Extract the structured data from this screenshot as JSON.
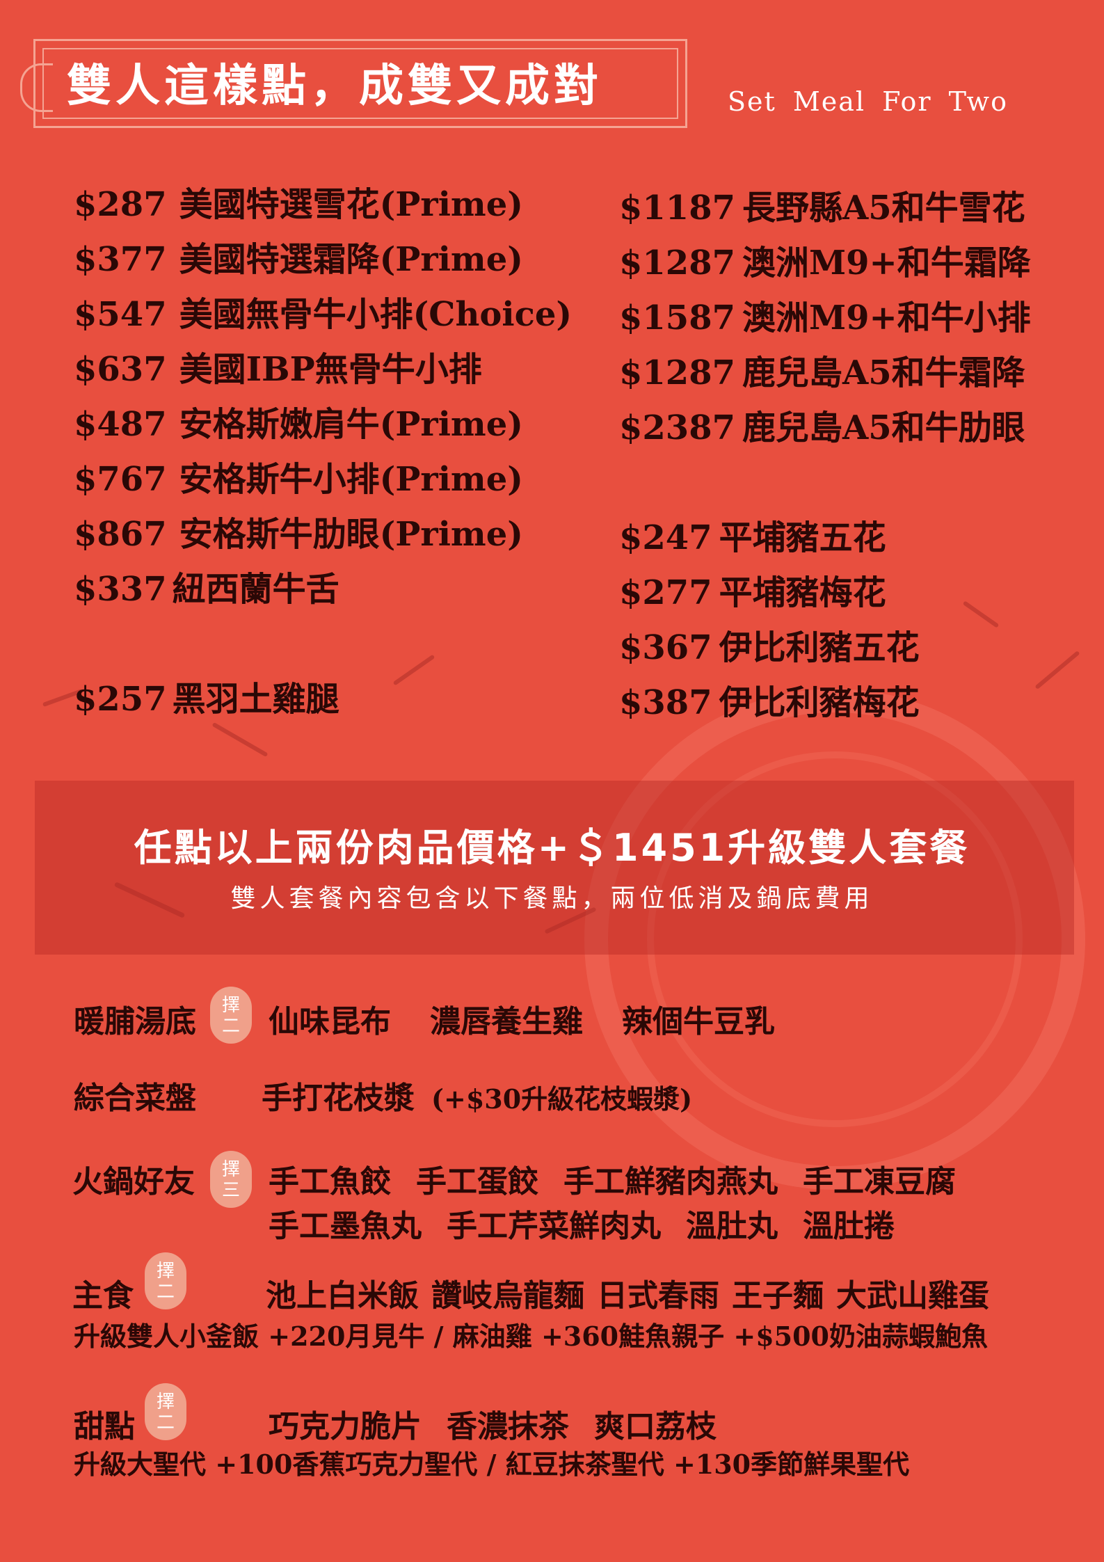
{
  "header": {
    "title": "雙人這樣點，成雙又成對",
    "subtitle": "Set Meal For Two"
  },
  "left_prices": [
    {
      "price": "$287",
      "name": "美國特選雪花(Prime)"
    },
    {
      "price": "$377",
      "name": "美國特選霜降(Prime)"
    },
    {
      "price": "$547",
      "name": "美國無骨牛小排(Choice)"
    },
    {
      "price": "$637",
      "name": "美國IBP無骨牛小排"
    },
    {
      "price": "$487",
      "name": "安格斯嫩肩牛(Prime)"
    },
    {
      "price": "$767",
      "name": "安格斯牛小排(Prime)"
    },
    {
      "price": "$867",
      "name": "安格斯牛肋眼(Prime)"
    },
    {
      "price": "$337",
      "name": "紐西蘭牛舌"
    },
    {
      "price": "$257",
      "name": "黑羽土雞腿"
    }
  ],
  "right_prices": [
    {
      "price": "$1187",
      "name": "長野縣A5和牛雪花"
    },
    {
      "price": "$1287",
      "name": "澳洲M9+和牛霜降"
    },
    {
      "price": "$1587",
      "name": "澳洲M9+和牛小排"
    },
    {
      "price": "$1287",
      "name": "鹿兒島A5和牛霜降"
    },
    {
      "price": "$2387",
      "name": "鹿兒島A5和牛肋眼"
    },
    {
      "price": "$247",
      "name": "平埔豬五花"
    },
    {
      "price": "$277",
      "name": "平埔豬梅花"
    },
    {
      "price": "$367",
      "name": "伊比利豬五花"
    },
    {
      "price": "$387",
      "name": "伊比利豬梅花"
    }
  ],
  "banner": {
    "main": "任點以上兩份肉品價格+＄1451升級雙人套餐",
    "sub": "雙人套餐內容包含以下餐點，兩位低消及鍋底費用"
  },
  "soup": {
    "label": "暖脯湯底",
    "badge": "擇二",
    "options": [
      "仙味昆布",
      "濃唇養生雞",
      "辣個牛豆乳"
    ]
  },
  "veg": {
    "label": "綜合菜盤",
    "item": "手打花枝漿",
    "note": "(+$30升級花枝蝦漿)"
  },
  "hotpot": {
    "label": "火鍋好友",
    "badge": "擇三",
    "options_row1": [
      "手工魚餃",
      "手工蛋餃",
      "手工鮮豬肉燕丸",
      "手工凍豆腐"
    ],
    "options_row2": [
      "手工墨魚丸",
      "手工芹菜鮮肉丸",
      "溫肚丸",
      "溫肚捲"
    ]
  },
  "staple": {
    "label": "主食",
    "badge": "擇二",
    "options": [
      "池上白米飯",
      "讚岐烏龍麵",
      "日式春雨",
      "王子麵",
      "大武山雞蛋"
    ],
    "upgrade": "升級雙人小釜飯 +220月見牛 / 麻油雞 +360鮭魚親子 +$500奶油蒜蝦鮑魚"
  },
  "dessert": {
    "label": "甜點",
    "badge": "擇二",
    "options": [
      "巧克力脆片",
      "香濃抹茶",
      "爽口荔枝"
    ],
    "upgrade": "升級大聖代 +100香蕉巧克力聖代 / 紅豆抹茶聖代 +130季節鮮果聖代"
  }
}
